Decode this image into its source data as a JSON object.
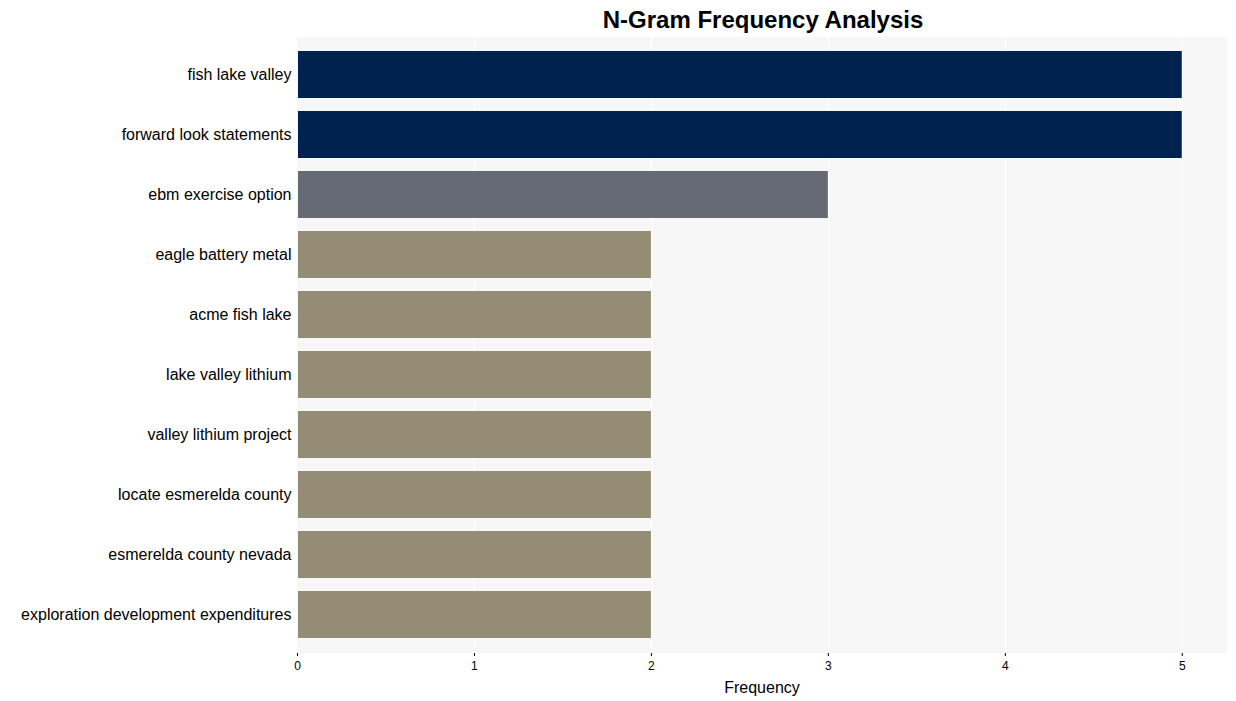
{
  "chart_data": {
    "type": "bar",
    "title": "N-Gram Frequency Analysis",
    "orientation": "horizontal",
    "x_label": "Frequency",
    "categories": [
      "fish lake valley",
      "forward look statements",
      "ebm exercise option",
      "eagle battery metal",
      "acme fish lake",
      "lake valley lithium",
      "valley lithium project",
      "locate esmerelda county",
      "esmerelda county nevada",
      "exploration development expenditures"
    ],
    "values": [
      5,
      5,
      3,
      2,
      2,
      2,
      2,
      2,
      2,
      2
    ],
    "colors": [
      "#00224e",
      "#00224e",
      "#666a74",
      "#948c75",
      "#948c75",
      "#948c75",
      "#948c75",
      "#948c75",
      "#948c75",
      "#948c75"
    ],
    "xlim": [
      0,
      5.25
    ],
    "xticks": [
      0,
      1,
      2,
      3,
      4,
      5
    ],
    "grid": true
  }
}
